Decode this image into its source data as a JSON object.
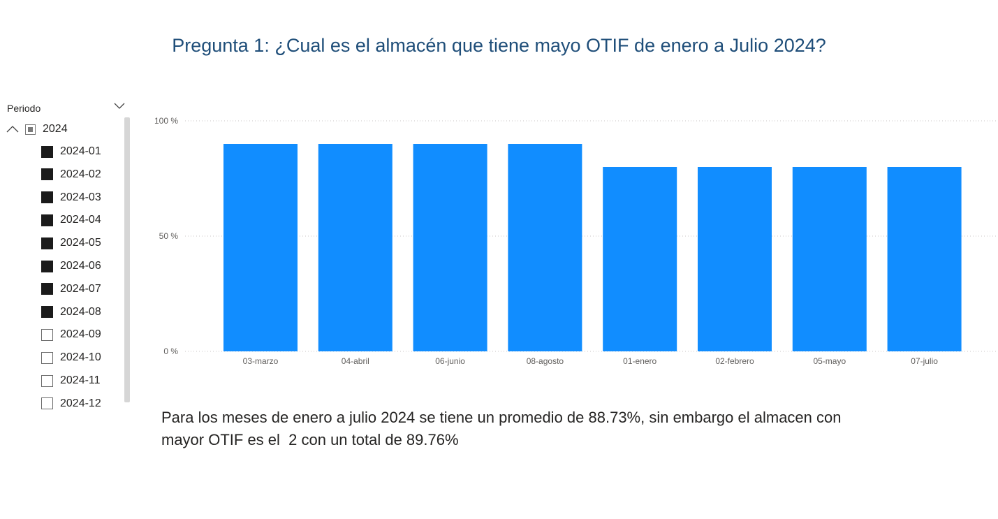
{
  "title": "Pregunta 1: ¿Cual es el almacén que tiene mayo OTIF de enero a Julio 2024?",
  "slicer": {
    "header": "Periodo",
    "year": "2024",
    "months": [
      {
        "label": "2024-01",
        "checked": true
      },
      {
        "label": "2024-02",
        "checked": true
      },
      {
        "label": "2024-03",
        "checked": true
      },
      {
        "label": "2024-04",
        "checked": true
      },
      {
        "label": "2024-05",
        "checked": true
      },
      {
        "label": "2024-06",
        "checked": true
      },
      {
        "label": "2024-07",
        "checked": true
      },
      {
        "label": "2024-08",
        "checked": true
      },
      {
        "label": "2024-09",
        "checked": false
      },
      {
        "label": "2024-10",
        "checked": false
      },
      {
        "label": "2024-11",
        "checked": false
      },
      {
        "label": "2024-12",
        "checked": false
      }
    ]
  },
  "chart_data": {
    "type": "bar",
    "categories": [
      "03-marzo",
      "04-abril",
      "06-junio",
      "08-agosto",
      "01-enero",
      "02-febrero",
      "05-mayo",
      "07-julio"
    ],
    "values": [
      90,
      90,
      90,
      90,
      80,
      80,
      80,
      80
    ],
    "ylim": [
      0,
      100
    ],
    "yticks": [
      0,
      50,
      100
    ],
    "ytick_labels": [
      "0 %",
      "50 %",
      "100 %"
    ],
    "grid": true,
    "bar_color": "#118dff"
  },
  "summary": "Para los meses de enero a julio 2024 se tiene un promedio de 88.73%, sin embargo el almacen con\nmayor OTIF es el  2 con un total de 89.76%"
}
